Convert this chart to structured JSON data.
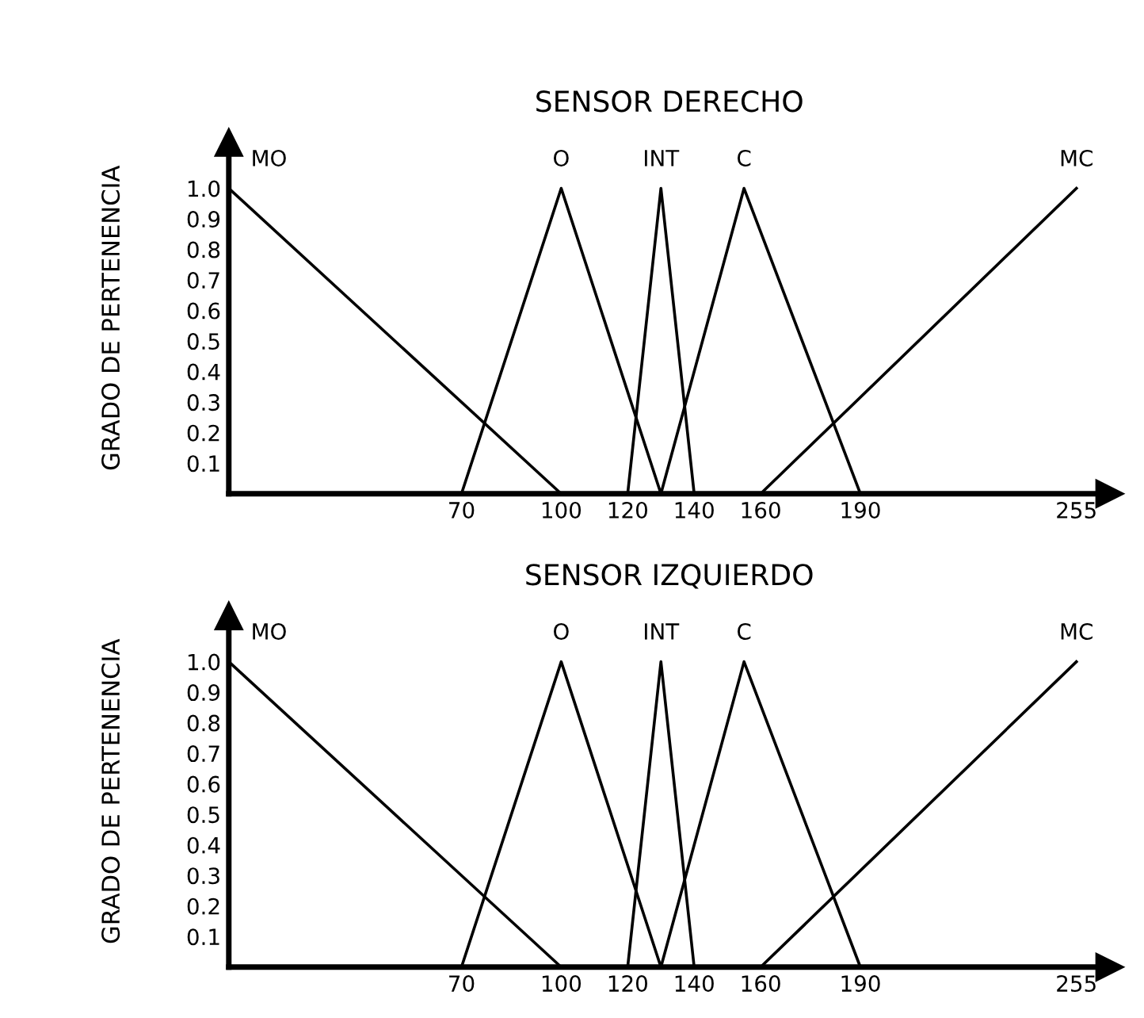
{
  "chart_data": [
    {
      "type": "line",
      "title": "SENSOR DERECHO",
      "ylabel": "GRADO DE PERTENENCIA",
      "xlim": [
        0,
        265
      ],
      "ylim": [
        0,
        1.15
      ],
      "xticks": [
        70,
        100,
        120,
        140,
        160,
        190,
        255
      ],
      "yticks": [
        {
          "value": 0.1,
          "label": "0.1"
        },
        {
          "value": 0.2,
          "label": "0.2"
        },
        {
          "value": 0.3,
          "label": "0.3"
        },
        {
          "value": 0.4,
          "label": "0.4"
        },
        {
          "value": 0.5,
          "label": "0.5"
        },
        {
          "value": 0.6,
          "label": "0.6"
        },
        {
          "value": 0.7,
          "label": "0.7"
        },
        {
          "value": 0.8,
          "label": "0.8"
        },
        {
          "value": 0.9,
          "label": "0.9"
        },
        {
          "value": 1,
          "label": "1.0"
        }
      ],
      "grid": false,
      "legend": false,
      "series": [
        {
          "name": "MO",
          "color": "#000000",
          "x": [
            0,
            100
          ],
          "values": [
            1,
            0
          ]
        },
        {
          "name": "O",
          "color": "#000000",
          "x": [
            70,
            100,
            130
          ],
          "values": [
            0,
            1,
            0
          ]
        },
        {
          "name": "INT",
          "color": "#000000",
          "x": [
            120,
            130,
            140
          ],
          "values": [
            0,
            1,
            0
          ]
        },
        {
          "name": "C",
          "color": "#000000",
          "x": [
            130,
            155,
            190
          ],
          "values": [
            0,
            1,
            0
          ]
        },
        {
          "name": "MC",
          "color": "#000000",
          "x": [
            160,
            255
          ],
          "values": [
            0,
            1
          ]
        }
      ]
    },
    {
      "type": "line",
      "title": "SENSOR IZQUIERDO",
      "ylabel": "GRADO DE PERTENENCIA",
      "xlim": [
        0,
        265
      ],
      "ylim": [
        0,
        1.15
      ],
      "xticks": [
        70,
        100,
        120,
        140,
        160,
        190,
        255
      ],
      "yticks": [
        {
          "value": 0.1,
          "label": "0.1"
        },
        {
          "value": 0.2,
          "label": "0.2"
        },
        {
          "value": 0.3,
          "label": "0.3"
        },
        {
          "value": 0.4,
          "label": "0.4"
        },
        {
          "value": 0.5,
          "label": "0.5"
        },
        {
          "value": 0.6,
          "label": "0.6"
        },
        {
          "value": 0.7,
          "label": "0.7"
        },
        {
          "value": 0.8,
          "label": "0.8"
        },
        {
          "value": 0.9,
          "label": "0.9"
        },
        {
          "value": 1,
          "label": "1.0"
        }
      ],
      "grid": false,
      "legend": false,
      "series": [
        {
          "name": "MO",
          "color": "#000000",
          "x": [
            0,
            100
          ],
          "values": [
            1,
            0
          ]
        },
        {
          "name": "O",
          "color": "#000000",
          "x": [
            70,
            100,
            130
          ],
          "values": [
            0,
            1,
            0
          ]
        },
        {
          "name": "INT",
          "color": "#000000",
          "x": [
            120,
            130,
            140
          ],
          "values": [
            0,
            1,
            0
          ]
        },
        {
          "name": "C",
          "color": "#000000",
          "x": [
            130,
            155,
            190
          ],
          "values": [
            0,
            1,
            0
          ]
        },
        {
          "name": "MC",
          "color": "#000000",
          "x": [
            160,
            255
          ],
          "values": [
            0,
            1
          ]
        }
      ]
    }
  ]
}
